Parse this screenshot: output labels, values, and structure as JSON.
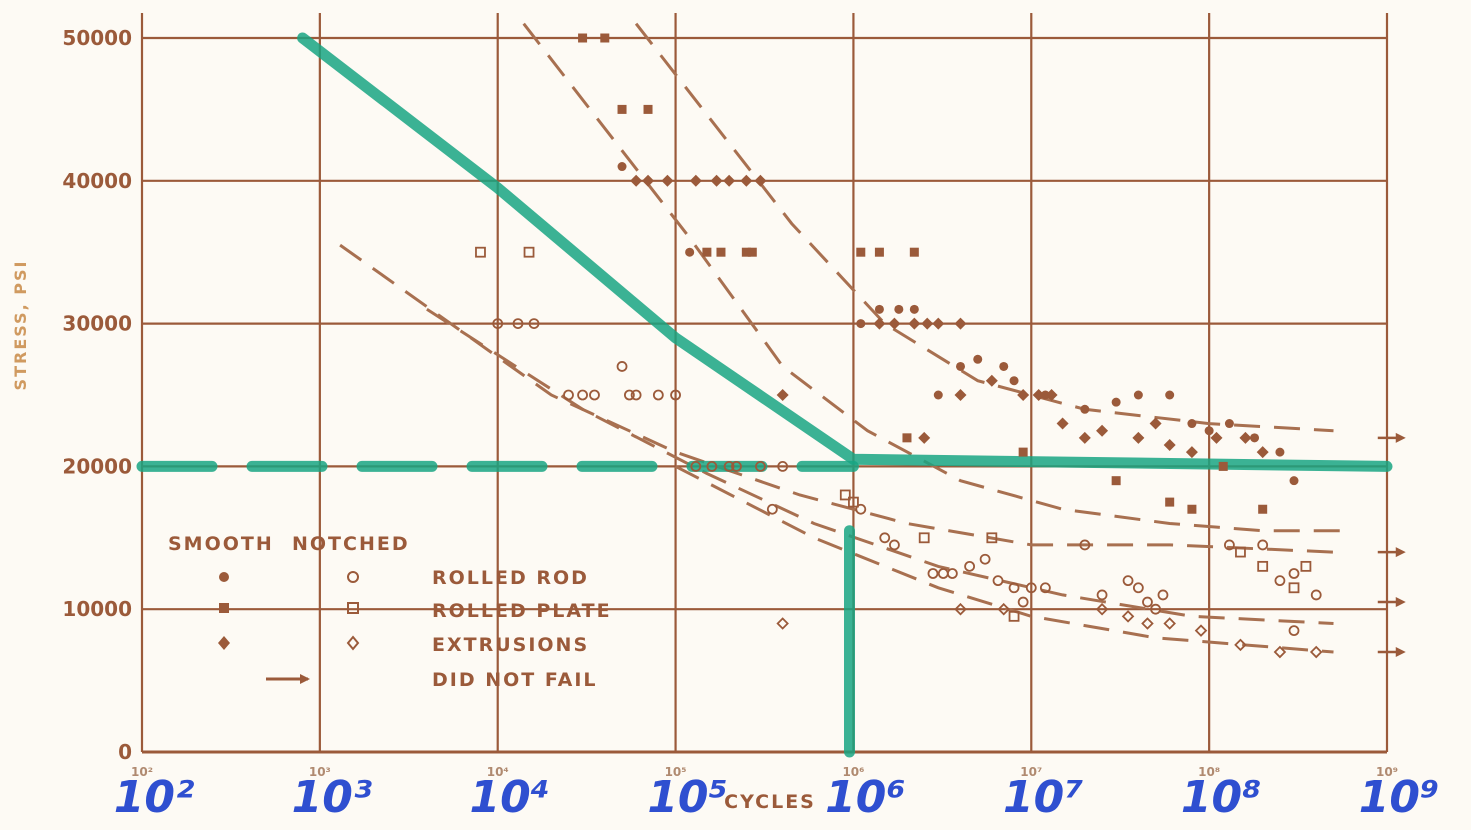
{
  "chart_data": {
    "type": "scatter",
    "x_scale": "log",
    "xlim": [
      100,
      1000000000
    ],
    "ylim": [
      0,
      50000
    ],
    "xlabel": "CYCLES",
    "ylabel": "STRESS, PSI",
    "grid": true,
    "legend_position": "bottom-left",
    "y_ticks": [
      {
        "value": 0,
        "label": "0"
      },
      {
        "value": 10000,
        "label": "10000"
      },
      {
        "value": 20000,
        "label": "20000"
      },
      {
        "value": 30000,
        "label": "30000"
      },
      {
        "value": 40000,
        "label": "40000"
      },
      {
        "value": 50000,
        "label": "50000"
      }
    ],
    "x_ticks": [
      {
        "value": 100,
        "label": "10²",
        "handwritten": "10²"
      },
      {
        "value": 1000,
        "label": "10³",
        "handwritten": "10³"
      },
      {
        "value": 10000,
        "label": "10⁴",
        "handwritten": "10⁴"
      },
      {
        "value": 100000,
        "label": "10⁵",
        "handwritten": "10⁵"
      },
      {
        "value": 1000000,
        "label": "10⁶",
        "handwritten": "10⁶"
      },
      {
        "value": 10000000,
        "label": "10⁷",
        "handwritten": "10⁷"
      },
      {
        "value": 100000000,
        "label": "10⁸",
        "handwritten": "10⁸"
      },
      {
        "value": 1000000000,
        "label": "10⁹",
        "handwritten": "10⁹"
      }
    ],
    "legend": {
      "header_smooth": "SMOOTH",
      "header_notched": "NOTCHED",
      "entries": [
        {
          "label": "ROLLED ROD",
          "smooth_marker": "filled-circle",
          "notched_marker": "open-circle"
        },
        {
          "label": "ROLLED PLATE",
          "smooth_marker": "filled-square",
          "notched_marker": "open-square"
        },
        {
          "label": "EXTRUSIONS",
          "smooth_marker": "filled-diamond",
          "notched_marker": "open-diamond"
        },
        {
          "label": "DID NOT FAIL",
          "marker": "arrow"
        }
      ]
    },
    "series": [
      {
        "marker": "filled-square",
        "points": [
          [
            30000,
            50000
          ],
          [
            40000,
            50000
          ],
          [
            50000,
            45000
          ],
          [
            70000,
            45000
          ],
          [
            150000,
            35000
          ],
          [
            180000,
            35000
          ],
          [
            250000,
            35000
          ],
          [
            270000,
            35000
          ],
          [
            1100000,
            35000
          ],
          [
            1400000,
            35000
          ],
          [
            2200000,
            35000
          ],
          [
            2000000,
            22000
          ],
          [
            9000000,
            21000
          ],
          [
            30000000,
            19000
          ],
          [
            60000000,
            17500
          ],
          [
            80000000,
            17000
          ],
          [
            120000000,
            20000
          ],
          [
            200000000,
            17000
          ]
        ]
      },
      {
        "marker": "filled-diamond",
        "points": [
          [
            60000,
            40000
          ],
          [
            70000,
            40000
          ],
          [
            90000,
            40000
          ],
          [
            130000,
            40000
          ],
          [
            170000,
            40000
          ],
          [
            200000,
            40000
          ],
          [
            250000,
            40000
          ],
          [
            300000,
            40000
          ],
          [
            400000,
            25000
          ],
          [
            1400000,
            30000
          ],
          [
            1700000,
            30000
          ],
          [
            2200000,
            30000
          ],
          [
            2600000,
            30000
          ],
          [
            3000000,
            30000
          ],
          [
            4000000,
            30000
          ],
          [
            2500000,
            22000
          ],
          [
            4000000,
            25000
          ],
          [
            6000000,
            26000
          ],
          [
            9000000,
            25000
          ],
          [
            11000000,
            25000
          ],
          [
            13000000,
            25000
          ],
          [
            15000000,
            23000
          ],
          [
            20000000,
            22000
          ],
          [
            25000000,
            22500
          ],
          [
            40000000,
            22000
          ],
          [
            50000000,
            23000
          ],
          [
            60000000,
            21500
          ],
          [
            80000000,
            21000
          ],
          [
            110000000,
            22000
          ],
          [
            160000000,
            22000
          ],
          [
            200000000,
            21000
          ]
        ]
      },
      {
        "marker": "filled-circle",
        "points": [
          [
            50000,
            41000
          ],
          [
            120000,
            35000
          ],
          [
            1100000,
            30000
          ],
          [
            1400000,
            31000
          ],
          [
            1800000,
            31000
          ],
          [
            2200000,
            31000
          ],
          [
            3000000,
            25000
          ],
          [
            4000000,
            27000
          ],
          [
            5000000,
            27500
          ],
          [
            7000000,
            27000
          ],
          [
            8000000,
            26000
          ],
          [
            12000000,
            25000
          ],
          [
            20000000,
            24000
          ],
          [
            30000000,
            24500
          ],
          [
            40000000,
            25000
          ],
          [
            60000000,
            25000
          ],
          [
            80000000,
            23000
          ],
          [
            100000000,
            22500
          ],
          [
            130000000,
            23000
          ],
          [
            180000000,
            22000
          ],
          [
            250000000,
            21000
          ],
          [
            300000000,
            19000
          ]
        ]
      },
      {
        "marker": "open-square",
        "points": [
          [
            8000,
            35000
          ],
          [
            15000,
            35000
          ],
          [
            900000,
            18000
          ],
          [
            1000000,
            17500
          ],
          [
            2500000,
            15000
          ],
          [
            6000000,
            15000
          ],
          [
            8000000,
            9500
          ],
          [
            150000000,
            14000
          ],
          [
            200000000,
            13000
          ],
          [
            300000000,
            11500
          ],
          [
            350000000,
            13000
          ]
        ]
      },
      {
        "marker": "open-circle",
        "points": [
          [
            10000,
            30000
          ],
          [
            13000,
            30000
          ],
          [
            16000,
            30000
          ],
          [
            25000,
            25000
          ],
          [
            30000,
            25000
          ],
          [
            35000,
            25000
          ],
          [
            50000,
            27000
          ],
          [
            55000,
            25000
          ],
          [
            60000,
            25000
          ],
          [
            80000,
            25000
          ],
          [
            100000,
            25000
          ],
          [
            130000,
            20000
          ],
          [
            160000,
            20000
          ],
          [
            200000,
            20000
          ],
          [
            220000,
            20000
          ],
          [
            300000,
            20000
          ],
          [
            400000,
            20000
          ],
          [
            350000,
            17000
          ],
          [
            1100000,
            17000
          ],
          [
            1500000,
            15000
          ],
          [
            1700000,
            14500
          ],
          [
            2800000,
            12500
          ],
          [
            3200000,
            12500
          ],
          [
            3600000,
            12500
          ],
          [
            4500000,
            13000
          ],
          [
            5500000,
            13500
          ],
          [
            6500000,
            12000
          ],
          [
            8000000,
            11500
          ],
          [
            9000000,
            10500
          ],
          [
            10000000,
            11500
          ],
          [
            12000000,
            11500
          ],
          [
            20000000,
            14500
          ],
          [
            25000000,
            11000
          ],
          [
            35000000,
            12000
          ],
          [
            40000000,
            11500
          ],
          [
            45000000,
            10500
          ],
          [
            50000000,
            10000
          ],
          [
            55000000,
            11000
          ],
          [
            130000000,
            14500
          ],
          [
            200000000,
            14500
          ],
          [
            250000000,
            12000
          ],
          [
            300000000,
            12500
          ],
          [
            300000000,
            8500
          ],
          [
            400000000,
            11000
          ]
        ]
      },
      {
        "marker": "open-diamond",
        "points": [
          [
            400000,
            9000
          ],
          [
            4000000,
            10000
          ],
          [
            7000000,
            10000
          ],
          [
            25000000,
            10000
          ],
          [
            35000000,
            9500
          ],
          [
            45000000,
            9000
          ],
          [
            60000000,
            9000
          ],
          [
            90000000,
            8500
          ],
          [
            150000000,
            7500
          ],
          [
            250000000,
            7000
          ],
          [
            400000000,
            7000
          ]
        ]
      }
    ],
    "curves": [
      {
        "style": "dashed",
        "points": [
          [
            14000,
            51000
          ],
          [
            120000,
            36000
          ],
          [
            400000,
            27000
          ],
          [
            1200000,
            22500
          ],
          [
            4000000,
            19000
          ],
          [
            15000000,
            17000
          ],
          [
            60000000,
            16000
          ],
          [
            200000000,
            15500
          ],
          [
            600000000,
            15500
          ]
        ]
      },
      {
        "style": "dashed",
        "points": [
          [
            60000,
            51000
          ],
          [
            450000,
            37000
          ],
          [
            1500000,
            30000
          ],
          [
            5000000,
            26000
          ],
          [
            20000000,
            24000
          ],
          [
            100000000,
            23000
          ],
          [
            500000000,
            22500
          ]
        ]
      },
      {
        "style": "dashed",
        "points": [
          [
            1300,
            35500
          ],
          [
            20000,
            25000
          ],
          [
            100000,
            21000
          ],
          [
            500000,
            18000
          ],
          [
            2000000,
            16000
          ],
          [
            10000000,
            14500
          ],
          [
            60000000,
            14500
          ],
          [
            500000000,
            14000
          ]
        ]
      },
      {
        "style": "dashed",
        "points": [
          [
            4000,
            31000
          ],
          [
            30000,
            24000
          ],
          [
            150000,
            19500
          ],
          [
            600000,
            16000
          ],
          [
            3000000,
            13000
          ],
          [
            15000000,
            11000
          ],
          [
            80000000,
            9500
          ],
          [
            500000000,
            9000
          ]
        ]
      },
      {
        "style": "dashed",
        "points": [
          [
            100000,
            20000
          ],
          [
            600000,
            15000
          ],
          [
            3000000,
            11500
          ],
          [
            10000000,
            9500
          ],
          [
            50000000,
            8000
          ],
          [
            500000000,
            7000
          ]
        ]
      }
    ],
    "did_not_fail_arrows": [
      {
        "x": 800000000,
        "y": 22000
      },
      {
        "x": 800000000,
        "y": 14000
      },
      {
        "x": 800000000,
        "y": 10500
      },
      {
        "x": 800000000,
        "y": 7000
      }
    ],
    "highlight_lines": [
      {
        "color": "#19a582",
        "points": [
          [
            800,
            50000
          ],
          [
            10000,
            39500
          ],
          [
            100000,
            29000
          ],
          [
            1000000,
            20500
          ],
          [
            1000000000,
            20000
          ]
        ]
      },
      {
        "color": "#19a582",
        "style": "dashed",
        "points": [
          [
            100,
            20000
          ],
          [
            1000000,
            20000
          ]
        ]
      },
      {
        "color": "#19a582",
        "points": [
          [
            950000,
            15500
          ],
          [
            950000,
            0
          ]
        ]
      }
    ]
  }
}
